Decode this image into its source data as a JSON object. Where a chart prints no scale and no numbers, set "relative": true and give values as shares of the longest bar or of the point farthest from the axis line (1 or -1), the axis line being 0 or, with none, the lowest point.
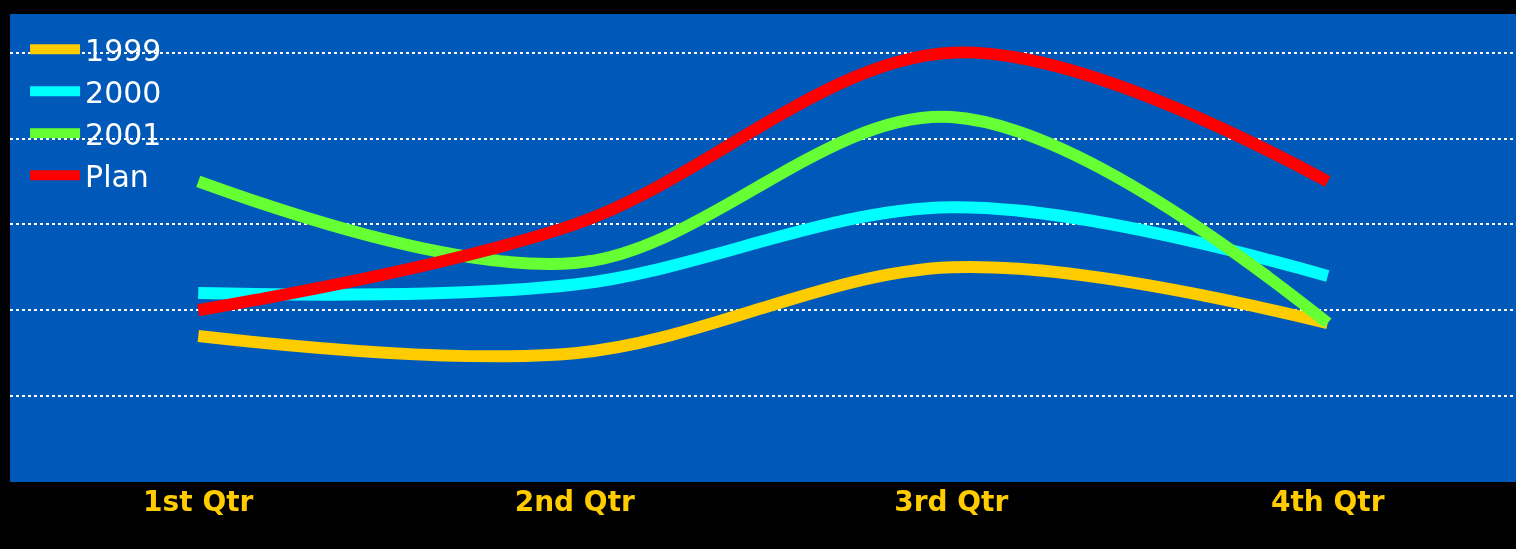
{
  "chart_data": {
    "type": "line",
    "relative": true,
    "categories": [
      "1st Qtr",
      "2nd Qtr",
      "3rd Qtr",
      "4th Qtr"
    ],
    "series": [
      {
        "name": "1999",
        "color": "#ffcc00",
        "values": [
          0.34,
          0.3,
          0.5,
          0.37
        ]
      },
      {
        "name": "2000",
        "color": "#00ffff",
        "values": [
          0.44,
          0.46,
          0.64,
          0.48
        ]
      },
      {
        "name": "2001",
        "color": "#66ff33",
        "values": [
          0.7,
          0.51,
          0.85,
          0.37
        ]
      },
      {
        "name": "Plan",
        "color": "#ff0000",
        "values": [
          0.4,
          0.6,
          1.0,
          0.7
        ]
      }
    ],
    "grid": "y",
    "legend": "top left",
    "marker": "none",
    "line_style": "solid"
  }
}
